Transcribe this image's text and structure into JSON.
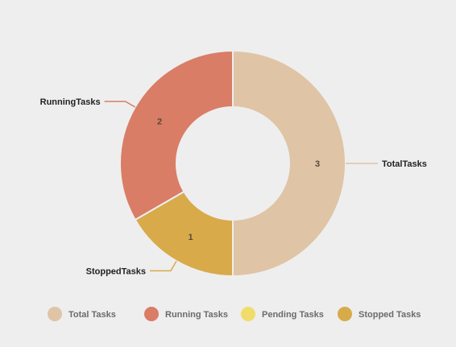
{
  "chart_data": {
    "type": "pie",
    "categories": [
      "TotalTasks",
      "PendingTasks",
      "StoppedTasks",
      "RunningTasks"
    ],
    "values": [
      3,
      0,
      1,
      2
    ],
    "colors": [
      "#dfc4a6",
      "#f0dc6a",
      "#d8aa4a",
      "#d97d66"
    ],
    "legend": {
      "placement": "bottom",
      "entries": [
        {
          "label": "Total Tasks",
          "color": "#dfc4a6"
        },
        {
          "label": "Running Tasks",
          "color": "#d97d66"
        },
        {
          "label": "Pending Tasks",
          "color": "#f0dc6a"
        },
        {
          "label": "Stopped Tasks",
          "color": "#d8aa4a"
        }
      ]
    }
  }
}
